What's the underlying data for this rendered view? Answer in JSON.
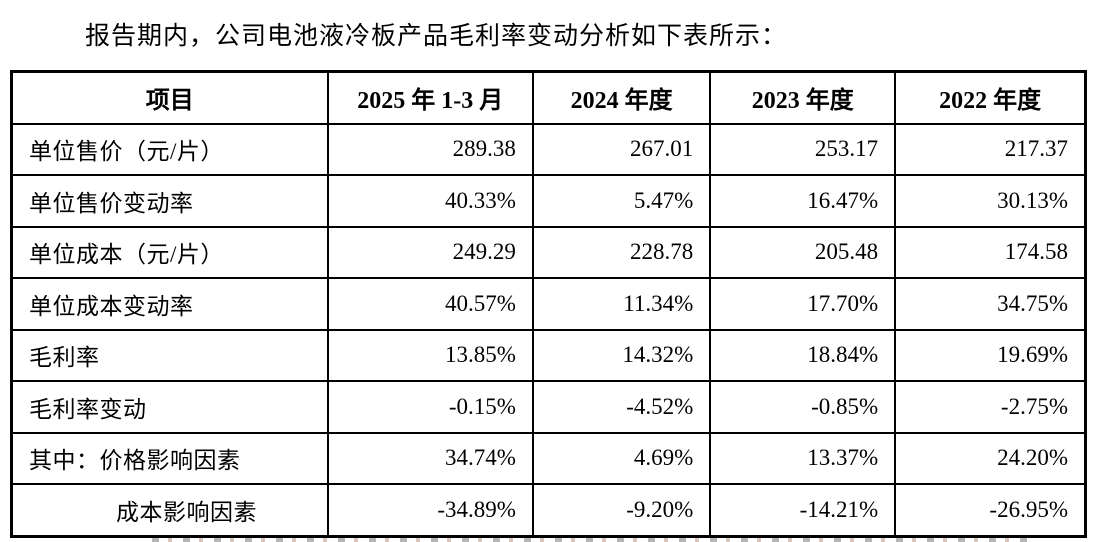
{
  "intro_text": "报告期内，公司电池液冷板产品毛利率变动分析如下表所示：",
  "table": {
    "columns": [
      "项目",
      "2025 年 1-3 月",
      "2024 年度",
      "2023 年度",
      "2022 年度"
    ],
    "rows": [
      {
        "label": "单位售价（元/片）",
        "values": [
          "289.38",
          "267.01",
          "253.17",
          "217.37"
        ]
      },
      {
        "label": "单位售价变动率",
        "values": [
          "40.33%",
          "5.47%",
          "16.47%",
          "30.13%"
        ]
      },
      {
        "label": "单位成本（元/片）",
        "values": [
          "249.29",
          "228.78",
          "205.48",
          "174.58"
        ]
      },
      {
        "label": "单位成本变动率",
        "values": [
          "40.57%",
          "11.34%",
          "17.70%",
          "34.75%"
        ]
      },
      {
        "label": "毛利率",
        "values": [
          "13.85%",
          "14.32%",
          "18.84%",
          "19.69%"
        ]
      },
      {
        "label": "毛利率变动",
        "values": [
          "-0.15%",
          "-4.52%",
          "-0.85%",
          "-2.75%"
        ]
      },
      {
        "label": "其中：价格影响因素",
        "values": [
          "34.74%",
          "4.69%",
          "13.37%",
          "24.20%"
        ]
      },
      {
        "label": "成本影响因素",
        "values": [
          "-34.89%",
          "-9.20%",
          "-14.21%",
          "-26.95%"
        ]
      }
    ]
  },
  "colors": {
    "text": "#000000",
    "border": "#000000",
    "background": "#ffffff"
  }
}
